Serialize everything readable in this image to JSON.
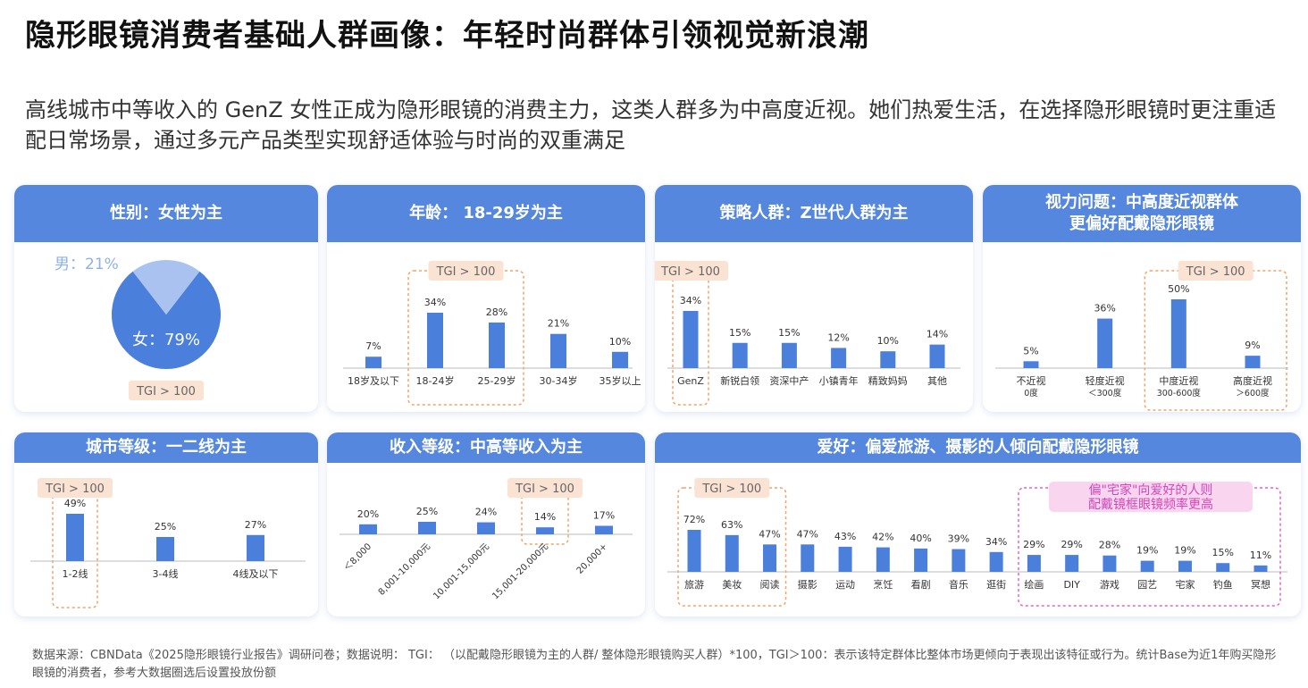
{
  "title": "隐形眼镜消费者基础人群画像：年轻时尚群体引领视觉新浪潮",
  "subtitle": "高线城市中等收入的 GenZ 女性正成为隐形眼镜的消费主力，这类人群多为中高度近视。她们热爱生活，在选择隐形眼镜时更注重适配日常场景，通过多元产品类型实现舒适体验与时尚的双重满足",
  "footer": "数据来源：CBNData《2025隐形眼镜行业报告》调研问卷；数据说明： TGI： （以配戴隐形眼镜为主的人群/ 整体隐形眼镜购买人群）*100，TGI＞100：表示该特定群体比整体市场更倾向于表现出该特征或行为。统计Base为近1年购买隐形眼镜的消费者，参考大数据圈选后设置投放份额",
  "colors": {
    "primary": "#5587de",
    "bar": "#4a7fdc",
    "pie_light": "#a9c2ef",
    "tgi_box": "#f0a46a",
    "tgi_fill": "#fbe3d4",
    "pink": "#e163c7",
    "pink_fill": "#f9d5f0"
  },
  "tgi_label": "TGI > 100",
  "chart_data": [
    {
      "id": "gender",
      "type": "pie",
      "title": "性别：女性为主",
      "slices": [
        {
          "label": "女：79%",
          "value": 79
        },
        {
          "label": "男：21%",
          "value": 21
        }
      ]
    },
    {
      "id": "age",
      "type": "bar",
      "title": "年龄： 18-29岁为主",
      "categories": [
        "18岁及以下",
        "18-24岁",
        "25-29岁",
        "30-34岁",
        "35岁以上"
      ],
      "values": [
        7,
        34,
        28,
        21,
        10
      ],
      "labels": [
        "7%",
        "34%",
        "28%",
        "21%",
        "10%"
      ],
      "highlight": [
        1,
        2
      ]
    },
    {
      "id": "strategy",
      "type": "bar",
      "title": "策略人群：Z世代人群为主",
      "categories": [
        "GenZ",
        "新锐白领",
        "资深中产",
        "小镇青年",
        "精致妈妈",
        "其他"
      ],
      "values": [
        34,
        15,
        15,
        12,
        10,
        14
      ],
      "labels": [
        "34%",
        "15%",
        "15%",
        "12%",
        "10%",
        "14%"
      ],
      "highlight": [
        0
      ]
    },
    {
      "id": "vision",
      "type": "bar",
      "title": "视力问题：中高度近视群体更偏好配戴隐形眼镜",
      "categories": [
        "不近视|0度",
        "轻度近视|＜300度",
        "中度近视|300-600度",
        "高度近视|＞600度"
      ],
      "values": [
        5,
        36,
        50,
        9
      ],
      "labels": [
        "5%",
        "36%",
        "50%",
        "9%"
      ],
      "highlight": [
        2,
        3
      ]
    },
    {
      "id": "city",
      "type": "bar",
      "title": "城市等级：一二线为主",
      "categories": [
        "1-2线",
        "3-4线",
        "4线及以下"
      ],
      "values": [
        49,
        25,
        27
      ],
      "labels": [
        "49%",
        "25%",
        "27%"
      ],
      "highlight": [
        0
      ]
    },
    {
      "id": "income",
      "type": "bar",
      "title": "收入等级：中高等收入为主",
      "categories": [
        "＜8,000",
        "8,001-10,000元",
        "10,001-15,000元",
        "15,001-20,000元",
        "20,000+"
      ],
      "values": [
        20,
        25,
        24,
        14,
        17
      ],
      "labels": [
        "20%",
        "25%",
        "24%",
        "14%",
        "17%"
      ],
      "highlight": [
        3
      ]
    },
    {
      "id": "hobby",
      "type": "bar",
      "title": "爱好：偏爱旅游、摄影的人倾向配戴隐形眼镜",
      "categories": [
        "旅游",
        "美妆",
        "阅读",
        "摄影",
        "运动",
        "烹饪",
        "看剧",
        "音乐",
        "逛街",
        "绘画",
        "DIY",
        "游戏",
        "园艺",
        "宅家",
        "钓鱼",
        "冥想"
      ],
      "values": [
        72,
        63,
        47,
        47,
        43,
        42,
        40,
        39,
        34,
        29,
        29,
        28,
        19,
        19,
        15,
        11
      ],
      "labels": [
        "72%",
        "63%",
        "47%",
        "47%",
        "43%",
        "42%",
        "40%",
        "39%",
        "34%",
        "29%",
        "29%",
        "28%",
        "19%",
        "19%",
        "15%",
        "11%"
      ],
      "highlight": [
        0,
        1,
        2
      ],
      "note": "偏\"宅家\"向爱好的人则配戴镜框眼镜频率更高"
    }
  ]
}
